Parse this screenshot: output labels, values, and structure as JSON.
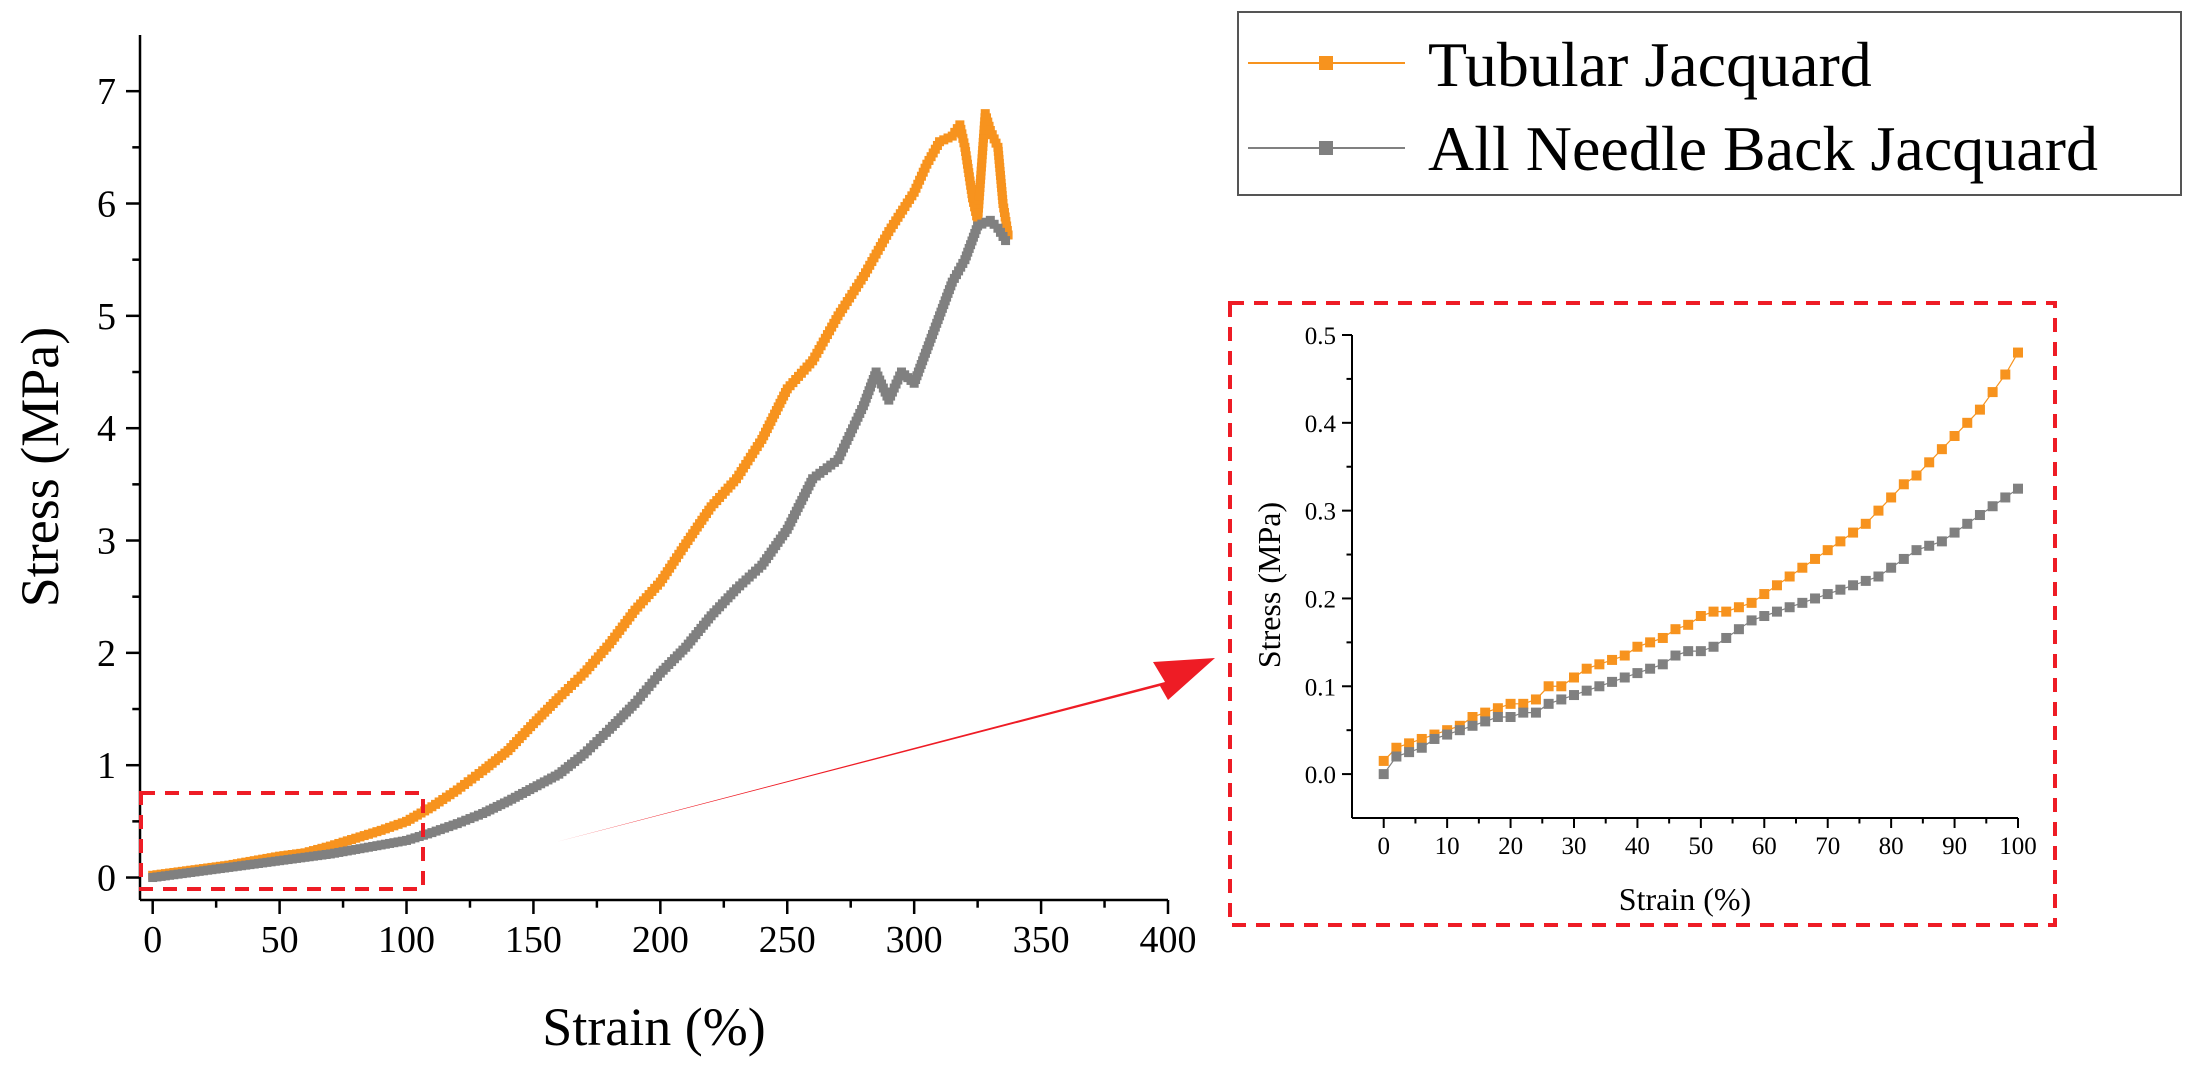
{
  "colors": {
    "tubular": "#f7931e",
    "needle": "#808080",
    "highlight": "#ee1c25",
    "axis": "#000000"
  },
  "legend": {
    "placement": "top-right",
    "entries": [
      "Tubular Jacquard",
      "All Needle Back Jacquard"
    ]
  },
  "chart_data": [
    {
      "type": "scatter",
      "title": "",
      "xlabel": "Strain (%)",
      "ylabel": "Stress (MPa)",
      "xlim": [
        -5,
        400
      ],
      "ylim": [
        -0.2,
        7.5
      ],
      "xticks": [
        0,
        50,
        100,
        150,
        200,
        250,
        300,
        350,
        400
      ],
      "yticks": [
        0,
        1,
        2,
        3,
        4,
        5,
        6,
        7
      ],
      "grid": false,
      "series": [
        {
          "name": "Tubular Jacquard",
          "x": [
            0,
            10,
            20,
            30,
            40,
            50,
            60,
            70,
            80,
            90,
            100,
            110,
            120,
            130,
            140,
            150,
            160,
            170,
            180,
            190,
            200,
            210,
            220,
            230,
            240,
            250,
            260,
            270,
            280,
            290,
            300,
            305,
            310,
            315,
            318,
            320,
            323,
            325,
            328,
            330,
            333,
            335,
            337
          ],
          "y": [
            0.02,
            0.05,
            0.08,
            0.11,
            0.15,
            0.19,
            0.22,
            0.28,
            0.35,
            0.42,
            0.5,
            0.63,
            0.78,
            0.95,
            1.13,
            1.37,
            1.6,
            1.82,
            2.08,
            2.38,
            2.63,
            2.97,
            3.3,
            3.55,
            3.9,
            4.35,
            4.6,
            5.0,
            5.35,
            5.75,
            6.1,
            6.35,
            6.55,
            6.6,
            6.7,
            6.5,
            6.05,
            5.85,
            6.8,
            6.65,
            6.5,
            6.0,
            5.72
          ]
        },
        {
          "name": "All Needle Back Jacquard",
          "x": [
            0,
            10,
            20,
            30,
            40,
            50,
            60,
            70,
            80,
            90,
            100,
            110,
            120,
            130,
            140,
            150,
            160,
            170,
            180,
            190,
            200,
            210,
            220,
            230,
            240,
            250,
            260,
            270,
            280,
            285,
            290,
            295,
            300,
            305,
            310,
            315,
            320,
            325,
            330,
            333,
            336
          ],
          "y": [
            0.0,
            0.03,
            0.06,
            0.09,
            0.12,
            0.15,
            0.18,
            0.21,
            0.25,
            0.29,
            0.33,
            0.4,
            0.48,
            0.57,
            0.68,
            0.8,
            0.92,
            1.1,
            1.32,
            1.55,
            1.82,
            2.05,
            2.33,
            2.57,
            2.78,
            3.1,
            3.55,
            3.72,
            4.2,
            4.5,
            4.25,
            4.5,
            4.4,
            4.7,
            5.0,
            5.3,
            5.5,
            5.8,
            5.85,
            5.78,
            5.67
          ]
        }
      ]
    },
    {
      "type": "scatter",
      "title": "",
      "xlabel": "Strain (%)",
      "ylabel": "Stress (MPa)",
      "xlim": [
        -5,
        100
      ],
      "ylim": [
        -0.05,
        0.5
      ],
      "xticks": [
        0,
        10,
        20,
        30,
        40,
        50,
        60,
        70,
        80,
        90,
        100
      ],
      "yticks": [
        0.0,
        0.1,
        0.2,
        0.3,
        0.4,
        0.5
      ],
      "yticklabels": [
        "0.0",
        "0.1",
        "0.2",
        "0.3",
        "0.4",
        "0.5"
      ],
      "grid": false,
      "series": [
        {
          "name": "Tubular Jacquard",
          "x": [
            0,
            2,
            4,
            6,
            8,
            10,
            12,
            14,
            16,
            18,
            20,
            22,
            24,
            26,
            28,
            30,
            32,
            34,
            36,
            38,
            40,
            42,
            44,
            46,
            48,
            50,
            52,
            54,
            56,
            58,
            60,
            62,
            64,
            66,
            68,
            70,
            72,
            74,
            76,
            78,
            80,
            82,
            84,
            86,
            88,
            90,
            92,
            94,
            96,
            98,
            100
          ],
          "y": [
            0.015,
            0.03,
            0.035,
            0.04,
            0.045,
            0.05,
            0.055,
            0.065,
            0.07,
            0.075,
            0.08,
            0.08,
            0.085,
            0.1,
            0.1,
            0.11,
            0.12,
            0.125,
            0.13,
            0.135,
            0.145,
            0.15,
            0.155,
            0.165,
            0.17,
            0.18,
            0.185,
            0.185,
            0.19,
            0.195,
            0.205,
            0.215,
            0.225,
            0.235,
            0.245,
            0.255,
            0.265,
            0.275,
            0.285,
            0.3,
            0.315,
            0.33,
            0.34,
            0.355,
            0.37,
            0.385,
            0.4,
            0.415,
            0.435,
            0.455,
            0.48
          ]
        },
        {
          "name": "All Needle Back Jacquard",
          "x": [
            0,
            2,
            4,
            6,
            8,
            10,
            12,
            14,
            16,
            18,
            20,
            22,
            24,
            26,
            28,
            30,
            32,
            34,
            36,
            38,
            40,
            42,
            44,
            46,
            48,
            50,
            52,
            54,
            56,
            58,
            60,
            62,
            64,
            66,
            68,
            70,
            72,
            74,
            76,
            78,
            80,
            82,
            84,
            86,
            88,
            90,
            92,
            94,
            96,
            98,
            100
          ],
          "y": [
            0.0,
            0.02,
            0.025,
            0.03,
            0.04,
            0.045,
            0.05,
            0.055,
            0.06,
            0.065,
            0.065,
            0.07,
            0.07,
            0.08,
            0.085,
            0.09,
            0.095,
            0.1,
            0.105,
            0.11,
            0.115,
            0.12,
            0.125,
            0.135,
            0.14,
            0.14,
            0.145,
            0.155,
            0.165,
            0.175,
            0.18,
            0.185,
            0.19,
            0.195,
            0.2,
            0.205,
            0.21,
            0.215,
            0.22,
            0.225,
            0.235,
            0.245,
            0.255,
            0.26,
            0.265,
            0.275,
            0.285,
            0.295,
            0.305,
            0.315,
            0.325
          ]
        }
      ]
    }
  ]
}
